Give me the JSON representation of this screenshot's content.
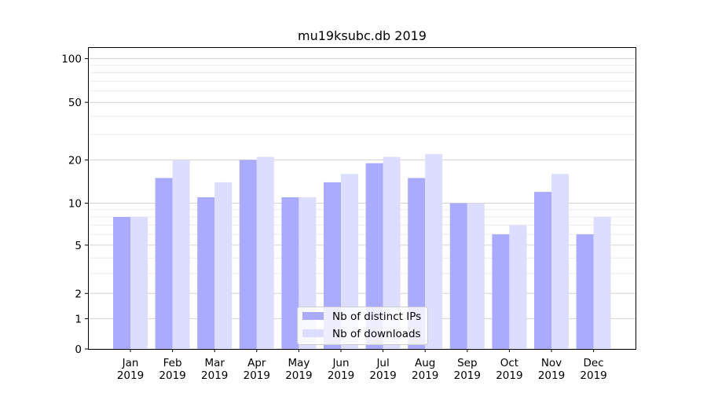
{
  "chart_data": {
    "type": "bar",
    "title": "mu19ksubc.db 2019",
    "xlabel": "",
    "ylabel": "",
    "yscale": "symlog",
    "ylim": [
      0,
      120
    ],
    "yticks": [
      0,
      1,
      2,
      5,
      10,
      20,
      50,
      100
    ],
    "categories": [
      [
        "Jan",
        "2019"
      ],
      [
        "Feb",
        "2019"
      ],
      [
        "Mar",
        "2019"
      ],
      [
        "Apr",
        "2019"
      ],
      [
        "May",
        "2019"
      ],
      [
        "Jun",
        "2019"
      ],
      [
        "Jul",
        "2019"
      ],
      [
        "Aug",
        "2019"
      ],
      [
        "Sep",
        "2019"
      ],
      [
        "Oct",
        "2019"
      ],
      [
        "Nov",
        "2019"
      ],
      [
        "Dec",
        "2019"
      ]
    ],
    "series": [
      {
        "name": "Nb of distinct IPs",
        "color": "#aaaaff",
        "values": [
          8,
          15,
          11,
          20,
          11,
          14,
          19,
          15,
          10,
          6,
          12,
          6
        ]
      },
      {
        "name": "Nb of downloads",
        "color": "#ddddff",
        "values": [
          8,
          20,
          14,
          21,
          11,
          16,
          21,
          22,
          10,
          7,
          16,
          8
        ]
      }
    ],
    "legend": "bottom-center",
    "grid": true
  }
}
